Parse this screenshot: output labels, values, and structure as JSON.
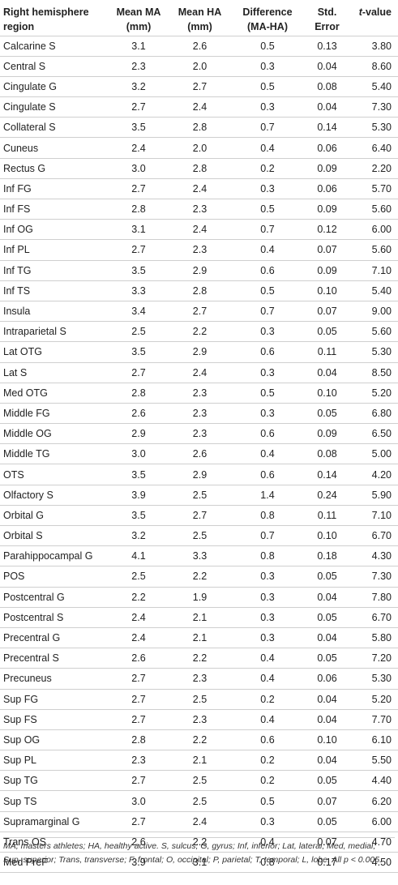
{
  "headers": {
    "region": "Right hemisphere region",
    "mean_ma": "Mean MA (mm)",
    "mean_ha": "Mean HA (mm)",
    "difference": "Difference (MA-HA)",
    "std_error": "Std. Error",
    "t_prefix": "t",
    "t_suffix": "-value"
  },
  "rows": [
    [
      "Calcarine S",
      "3.1",
      "2.6",
      "0.5",
      "0.13",
      "3.80"
    ],
    [
      "Central S",
      "2.3",
      "2.0",
      "0.3",
      "0.04",
      "8.60"
    ],
    [
      "Cingulate G",
      "3.2",
      "2.7",
      "0.5",
      "0.08",
      "5.40"
    ],
    [
      "Cingulate S",
      "2.7",
      "2.4",
      "0.3",
      "0.04",
      "7.30"
    ],
    [
      "Collateral S",
      "3.5",
      "2.8",
      "0.7",
      "0.14",
      "5.30"
    ],
    [
      "Cuneus",
      "2.4",
      "2.0",
      "0.4",
      "0.06",
      "6.40"
    ],
    [
      "Rectus G",
      "3.0",
      "2.8",
      "0.2",
      "0.09",
      "2.20"
    ],
    [
      "Inf FG",
      "2.7",
      "2.4",
      "0.3",
      "0.06",
      "5.70"
    ],
    [
      "Inf FS",
      "2.8",
      "2.3",
      "0.5",
      "0.09",
      "5.60"
    ],
    [
      "Inf OG",
      "3.1",
      "2.4",
      "0.7",
      "0.12",
      "6.00"
    ],
    [
      "Inf PL",
      "2.7",
      "2.3",
      "0.4",
      "0.07",
      "5.60"
    ],
    [
      "Inf TG",
      "3.5",
      "2.9",
      "0.6",
      "0.09",
      "7.10"
    ],
    [
      "Inf TS",
      "3.3",
      "2.8",
      "0.5",
      "0.10",
      "5.40"
    ],
    [
      "Insula",
      "3.4",
      "2.7",
      "0.7",
      "0.07",
      "9.00"
    ],
    [
      "Intraparietal S",
      "2.5",
      "2.2",
      "0.3",
      "0.05",
      "5.60"
    ],
    [
      "Lat OTG",
      "3.5",
      "2.9",
      "0.6",
      "0.11",
      "5.30"
    ],
    [
      "Lat S",
      "2.7",
      "2.4",
      "0.3",
      "0.04",
      "8.50"
    ],
    [
      "Med OTG",
      "2.8",
      "2.3",
      "0.5",
      "0.10",
      "5.20"
    ],
    [
      "Middle FG",
      "2.6",
      "2.3",
      "0.3",
      "0.05",
      "6.80"
    ],
    [
      "Middle OG",
      "2.9",
      "2.3",
      "0.6",
      "0.09",
      "6.50"
    ],
    [
      "Middle TG",
      "3.0",
      "2.6",
      "0.4",
      "0.08",
      "5.00"
    ],
    [
      "OTS",
      "3.5",
      "2.9",
      "0.6",
      "0.14",
      "4.20"
    ],
    [
      "Olfactory S",
      "3.9",
      "2.5",
      "1.4",
      "0.24",
      "5.90"
    ],
    [
      "Orbital G",
      "3.5",
      "2.7",
      "0.8",
      "0.11",
      "7.10"
    ],
    [
      "Orbital S",
      "3.2",
      "2.5",
      "0.7",
      "0.10",
      "6.70"
    ],
    [
      "Parahippocampal G",
      "4.1",
      "3.3",
      "0.8",
      "0.18",
      "4.30"
    ],
    [
      "POS",
      "2.5",
      "2.2",
      "0.3",
      "0.05",
      "7.30"
    ],
    [
      "Postcentral G",
      "2.2",
      "1.9",
      "0.3",
      "0.04",
      "7.80"
    ],
    [
      "Postcentral S",
      "2.4",
      "2.1",
      "0.3",
      "0.05",
      "6.70"
    ],
    [
      "Precentral G",
      "2.4",
      "2.1",
      "0.3",
      "0.04",
      "5.80"
    ],
    [
      "Precentral S",
      "2.6",
      "2.2",
      "0.4",
      "0.05",
      "7.20"
    ],
    [
      "Precuneus",
      "2.7",
      "2.3",
      "0.4",
      "0.06",
      "5.30"
    ],
    [
      "Sup FG",
      "2.7",
      "2.5",
      "0.2",
      "0.04",
      "5.20"
    ],
    [
      "Sup FS",
      "2.7",
      "2.3",
      "0.4",
      "0.04",
      "7.70"
    ],
    [
      "Sup OG",
      "2.8",
      "2.2",
      "0.6",
      "0.10",
      "6.10"
    ],
    [
      "Sup PL",
      "2.3",
      "2.1",
      "0.2",
      "0.04",
      "5.50"
    ],
    [
      "Sup TG",
      "2.7",
      "2.5",
      "0.2",
      "0.05",
      "4.40"
    ],
    [
      "Sup TS",
      "3.0",
      "2.5",
      "0.5",
      "0.07",
      "6.20"
    ],
    [
      "Supramarginal G",
      "2.7",
      "2.4",
      "0.3",
      "0.05",
      "6.00"
    ],
    [
      "Trans OS",
      "2.6",
      "2.2",
      "0.4",
      "0.07",
      "4.70"
    ],
    [
      "Med PreF",
      "3.9",
      "3.1",
      "0.8",
      "0.17",
      "4.50"
    ]
  ],
  "footnote": "MA, masters athletes; HA, healthy active. S, sulcus; G, gyrus; Inf, inferior; Lat, lateral; Med, medial; Sup, superior; Trans, transverse; F, frontal; O, occipital; P, parietal; T, temporal; L, lobe. All p < 0.005."
}
